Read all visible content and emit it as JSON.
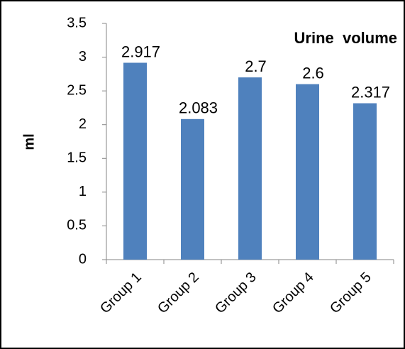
{
  "chart_data": {
    "type": "bar",
    "title": "Urine  volume",
    "y_label": "ml",
    "categories": [
      "Group 1",
      "Group 2",
      "Group 3",
      "Group 4",
      "Group 5"
    ],
    "values": [
      2.917,
      2.083,
      2.7,
      2.6,
      2.317
    ],
    "color": "#4f81bd",
    "ylim": [
      0,
      3.5
    ],
    "yticks": [
      0,
      0.5,
      1,
      1.5,
      2,
      2.5,
      3,
      3.5
    ],
    "grid": false
  }
}
